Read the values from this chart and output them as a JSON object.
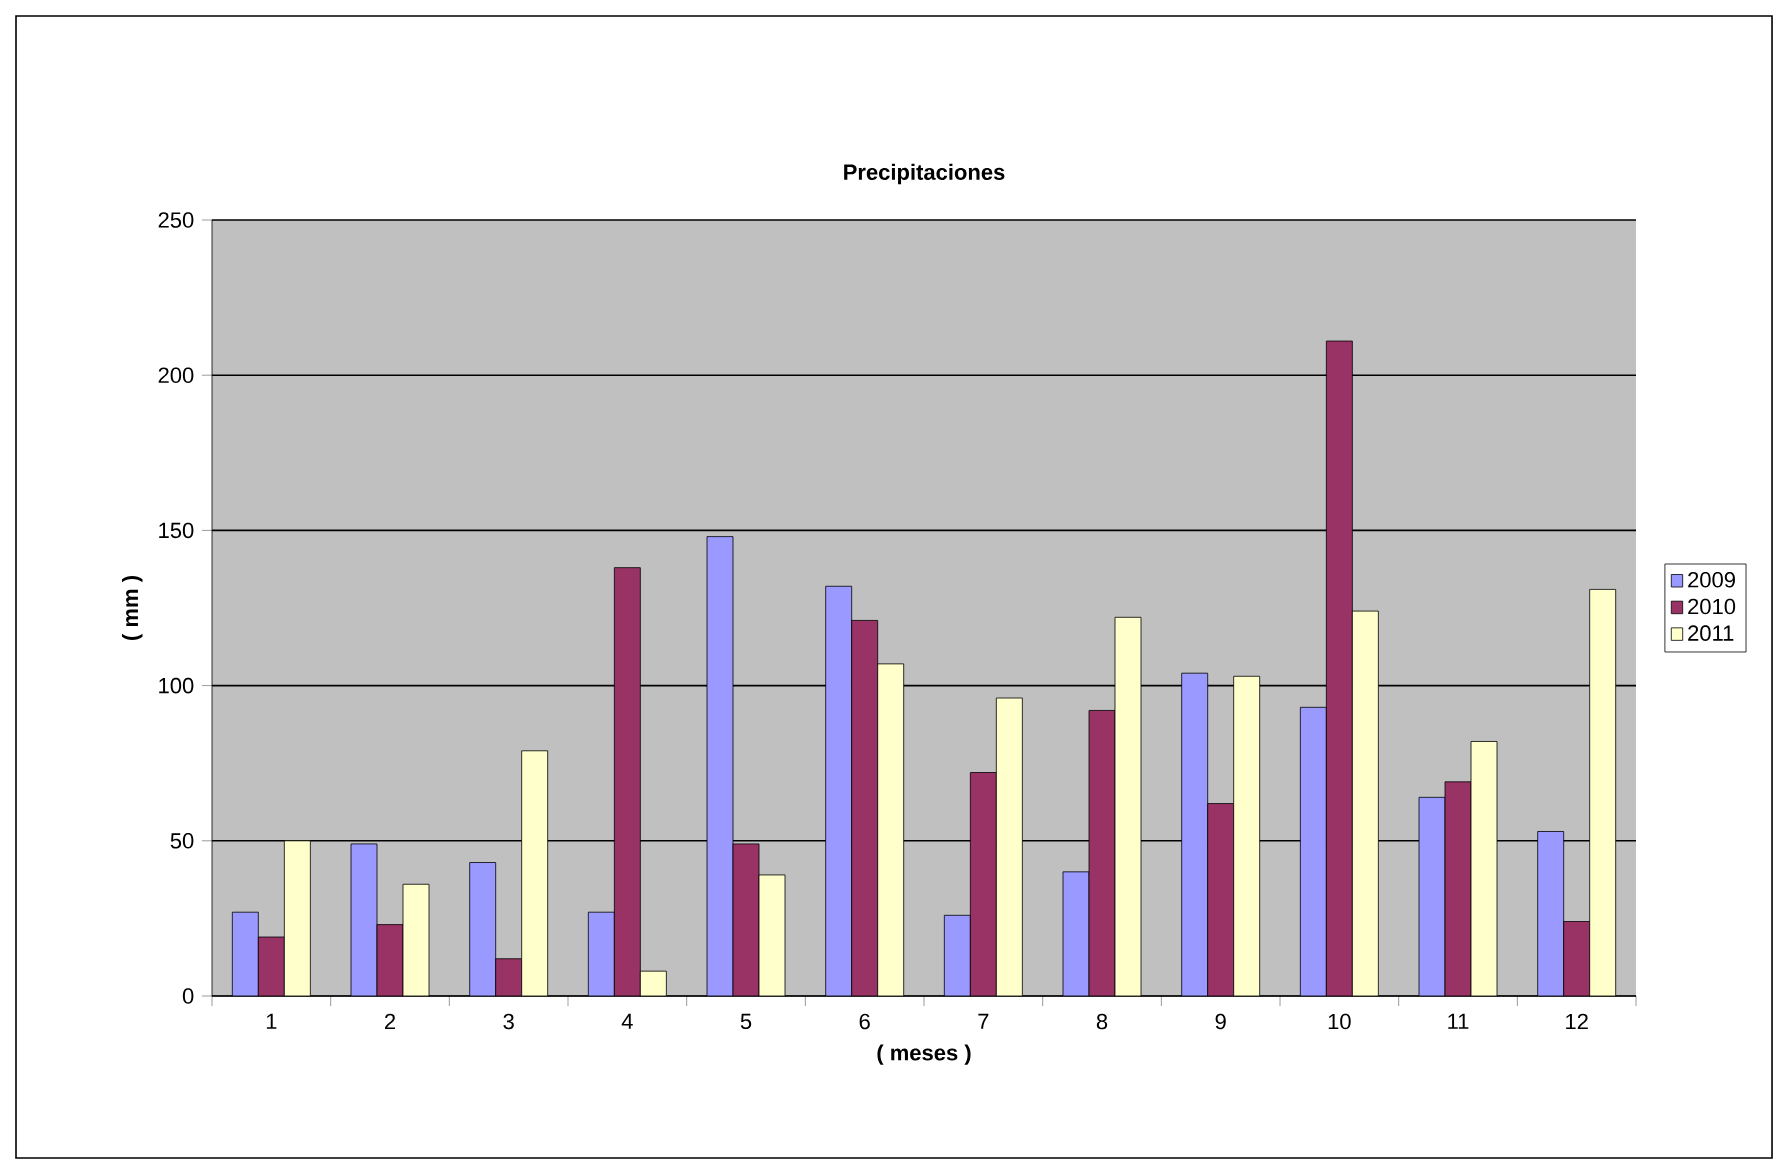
{
  "chart_data": {
    "type": "bar",
    "title": "Precipitaciones",
    "xlabel": "( meses )",
    "ylabel": "( mm )",
    "categories": [
      "1",
      "2",
      "3",
      "4",
      "5",
      "6",
      "7",
      "8",
      "9",
      "10",
      "11",
      "12"
    ],
    "series": [
      {
        "name": "2009",
        "color": "#9999ff",
        "values": [
          27,
          49,
          43,
          27,
          148,
          132,
          26,
          40,
          104,
          93,
          64,
          53
        ]
      },
      {
        "name": "2010",
        "color": "#993366",
        "values": [
          19,
          23,
          12,
          138,
          49,
          121,
          72,
          92,
          62,
          211,
          69,
          24
        ]
      },
      {
        "name": "2011",
        "color": "#ffffcc",
        "values": [
          50,
          36,
          79,
          8,
          39,
          107,
          96,
          122,
          103,
          124,
          82,
          131
        ]
      }
    ],
    "ylim": [
      0,
      250
    ],
    "yticks": [
      0,
      50,
      100,
      150,
      200,
      250
    ],
    "grid": "y",
    "legend": "right"
  }
}
